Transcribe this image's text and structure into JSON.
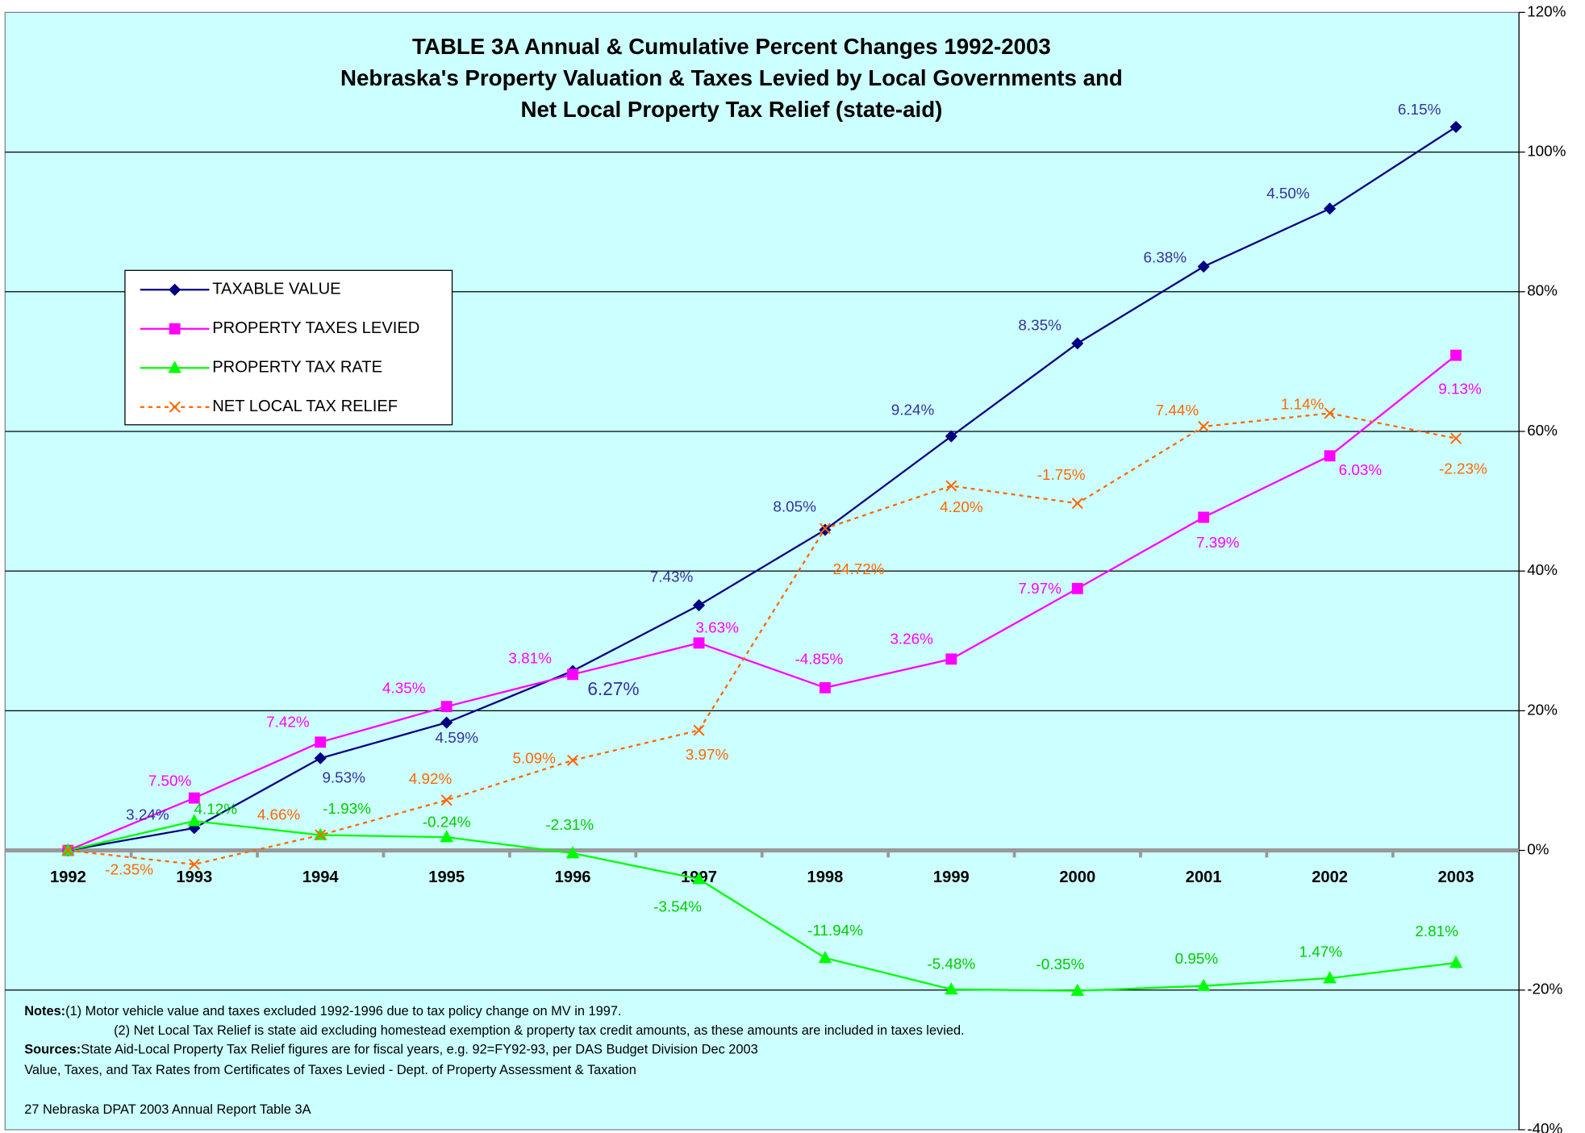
{
  "chart_data": {
    "type": "line",
    "title": [
      "TABLE 3A Annual & Cumulative Percent Changes 1992-2003",
      "Nebraska's Property Valuation & Taxes Levied by Local Governments and",
      "Net Local Property Tax Relief (state-aid)"
    ],
    "categories": [
      "1992",
      "1993",
      "1994",
      "1995",
      "1996",
      "1997",
      "1998",
      "1999",
      "2000",
      "2001",
      "2002",
      "2003"
    ],
    "ylim": [
      -40,
      120
    ],
    "yticks": [
      {
        "value": -40,
        "label": "-40%"
      },
      {
        "value": -20,
        "label": "-20%"
      },
      {
        "value": 0,
        "label": "0%"
      },
      {
        "value": 20,
        "label": "20%"
      },
      {
        "value": 40,
        "label": "40%"
      },
      {
        "value": 60,
        "label": "60%"
      },
      {
        "value": 80,
        "label": "80%"
      },
      {
        "value": 100,
        "label": "100%"
      },
      {
        "value": 120,
        "label": "120%"
      }
    ],
    "grid": true,
    "legend": "upper left",
    "series": [
      {
        "name": "TAXABLE VALUE",
        "color": "#000080",
        "label_color": "#333399",
        "marker": "diamond",
        "dash": false,
        "values": [
          0,
          3.2,
          13.2,
          18.3,
          25.7,
          35.1,
          45.9,
          59.3,
          72.6,
          83.6,
          91.9,
          103.6
        ],
        "labels": [
          null,
          "3.24%",
          "9.53%",
          "4.59%",
          "6.27%",
          "7.43%",
          "8.05%",
          "9.24%",
          "8.35%",
          "6.38%",
          "4.50%",
          "6.15%"
        ]
      },
      {
        "name": "PROPERTY TAXES LEVIED",
        "color": "#ff00ff",
        "label_color": "#ff00ff",
        "marker": "square",
        "dash": false,
        "values": [
          0,
          7.5,
          15.5,
          20.6,
          25.2,
          29.7,
          23.3,
          27.4,
          37.5,
          47.7,
          56.5,
          70.9
        ],
        "labels": [
          null,
          "7.50%",
          "7.42%",
          "4.35%",
          "3.81%",
          "3.63%",
          "-4.85%",
          "3.26%",
          "7.97%",
          "7.39%",
          "6.03%",
          "9.13%"
        ]
      },
      {
        "name": "PROPERTY TAX RATE",
        "color": "#00ff00",
        "label_color": "#00cc00",
        "marker": "triangle",
        "dash": false,
        "values": [
          0,
          4.2,
          2.2,
          1.9,
          -0.4,
          -4.1,
          -15.4,
          -19.9,
          -20.1,
          -19.4,
          -18.3,
          -16.1
        ],
        "labels": [
          null,
          "4.12%",
          "-1.93%",
          "-0.24%",
          "-2.31%",
          "-3.54%",
          "-11.94%",
          "-5.48%",
          "-0.35%",
          "0.95%",
          "1.47%",
          "2.81%"
        ]
      },
      {
        "name": "NET LOCAL TAX RELIEF",
        "color": "#ff6600",
        "label_color": "#ff6600",
        "marker": "x",
        "dash": true,
        "values": [
          0,
          -2.0,
          2.2,
          7.2,
          12.9,
          17.2,
          46.1,
          52.2,
          49.7,
          60.7,
          62.6,
          59.0
        ],
        "labels": [
          null,
          "-2.35%",
          "4.66%",
          "4.92%",
          "5.09%",
          "3.97%",
          "24.72%",
          "4.20%",
          "-1.75%",
          "7.44%",
          "1.14%",
          "-2.23%"
        ]
      }
    ],
    "notes": [
      {
        "label": "Notes:",
        "text": "(1) Motor vehicle value and taxes excluded 1992-1996 due to tax policy change on MV in 1997."
      },
      {
        "text": "(2) Net Local Tax Relief is state aid excluding homestead exemption & property tax credit amounts, as these amounts are included in taxes levied."
      },
      {
        "label": "Sources:",
        "text": "State Aid-Local Property Tax Relief figures are for fiscal years, e.g. 92=FY92-93, per DAS Budget Division Dec 2003"
      },
      {
        "text": "Value, Taxes, and Tax Rates from Certificates of Taxes Levied - Dept. of Property Assessment & Taxation"
      },
      {
        "text": "27 Nebraska DPAT 2003 Annual Report Table 3A"
      }
    ]
  }
}
